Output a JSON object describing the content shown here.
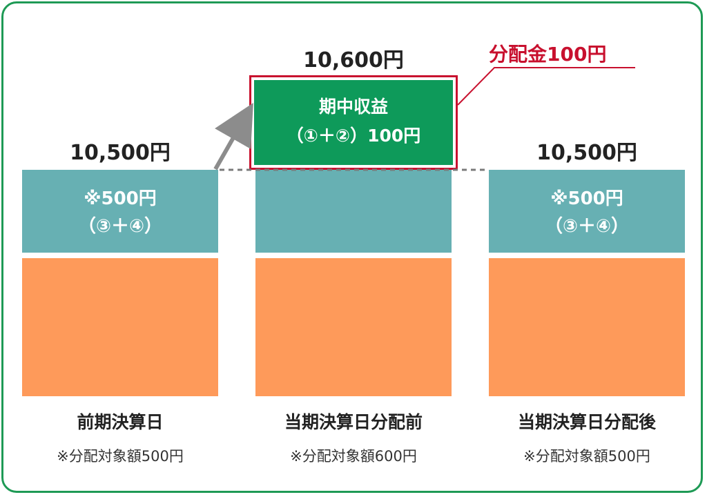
{
  "columns": [
    {
      "total": "10,500円",
      "box_line1": "※500円",
      "box_line2": "（③＋④）",
      "label": "前期決算日",
      "note": "※分配対象額500円"
    },
    {
      "total": "10,600円",
      "label": "当期決算日分配前",
      "note": "※分配対象額600円"
    },
    {
      "total": "10,500円",
      "box_line1": "※500円",
      "box_line2": "（③＋④）",
      "label": "当期決算日分配後",
      "note": "※分配対象額500円"
    }
  ],
  "income_box": {
    "line1": "期中収益",
    "line2": "（①＋②）100円"
  },
  "distribution_label": "分配金100円",
  "colors": {
    "frame": "#1e9a55",
    "teal": "#67b0b3",
    "orange": "#fe9a5a",
    "income_green": "#0e9a5a",
    "distribution_red": "#c8102e",
    "arrow_gray": "#8c8c8c"
  }
}
